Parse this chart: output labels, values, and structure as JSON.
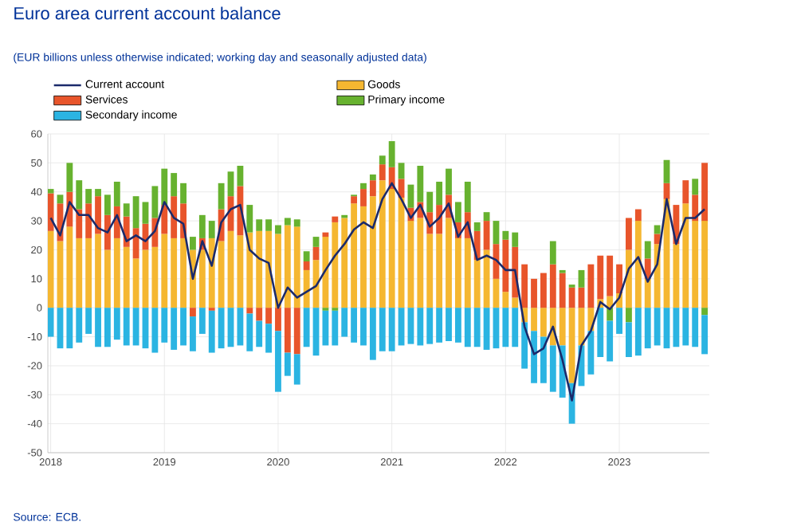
{
  "chart_data": {
    "type": "bar",
    "title": "Euro area current account balance",
    "subtitle": "(EUR billions unless otherwise indicated; working day and seasonally adjusted data)",
    "annotations": [
      "Source: ECB."
    ],
    "x": [
      "2018-01",
      "2018-02",
      "2018-03",
      "2018-04",
      "2018-05",
      "2018-06",
      "2018-07",
      "2018-08",
      "2018-09",
      "2018-10",
      "2018-11",
      "2018-12",
      "2019-01",
      "2019-02",
      "2019-03",
      "2019-04",
      "2019-05",
      "2019-06",
      "2019-07",
      "2019-08",
      "2019-09",
      "2019-10",
      "2019-11",
      "2019-12",
      "2020-01",
      "2020-02",
      "2020-03",
      "2020-04",
      "2020-05",
      "2020-06",
      "2020-07",
      "2020-08",
      "2020-09",
      "2020-10",
      "2020-11",
      "2020-12",
      "2021-01",
      "2021-02",
      "2021-03",
      "2021-04",
      "2021-05",
      "2021-06",
      "2021-07",
      "2021-08",
      "2021-09",
      "2021-10",
      "2021-11",
      "2021-12",
      "2022-01",
      "2022-02",
      "2022-03",
      "2022-04",
      "2022-05",
      "2022-06",
      "2022-07",
      "2022-08",
      "2022-09",
      "2022-10",
      "2022-11",
      "2022-12",
      "2023-01",
      "2023-02",
      "2023-03",
      "2023-04",
      "2023-05",
      "2023-06",
      "2023-07",
      "2023-08",
      "2023-09",
      "2023-10"
    ],
    "series": [
      {
        "name": "Current account",
        "type": "line",
        "color": "#1b2a6b",
        "values": [
          31,
          25,
          36.5,
          32,
          32,
          27.5,
          26,
          32,
          23,
          25,
          23,
          26.5,
          36.5,
          31,
          29,
          10,
          23,
          14.5,
          29.5,
          34,
          35.5,
          20,
          17,
          15.5,
          0,
          7,
          3.5,
          5.5,
          7.5,
          13,
          18,
          22,
          27,
          29.5,
          27.5,
          37.5,
          43,
          37.5,
          31,
          35.5,
          28,
          31,
          36,
          24.5,
          29.5,
          16.5,
          18,
          16.5,
          13,
          13,
          -6.5,
          -16,
          -14,
          -6.5,
          -18,
          -32,
          -13,
          -8,
          2,
          -0.5,
          3.5,
          13.5,
          17.5,
          9,
          15,
          37.5,
          22,
          31,
          31,
          34
        ]
      },
      {
        "name": "Goods",
        "type": "bar",
        "color": "#f5b731",
        "values": [
          26.5,
          23,
          28,
          24,
          24,
          25.5,
          20,
          24,
          21,
          17,
          20,
          21,
          25.5,
          24,
          24,
          20,
          20,
          24,
          23,
          26.5,
          25,
          26,
          26.5,
          26.5,
          25.5,
          28.5,
          28,
          13,
          16.5,
          24.5,
          29.5,
          31,
          36,
          35,
          38.5,
          44,
          41,
          38,
          30,
          31,
          25.5,
          25.5,
          31,
          24,
          24,
          16.5,
          20,
          10,
          5.5,
          3.5,
          -5,
          -8,
          -10,
          -13,
          -13,
          -26,
          -13,
          -8,
          3,
          4,
          5,
          20,
          30,
          10,
          22,
          37.5,
          22,
          36,
          30,
          30
        ]
      },
      {
        "name": "Services",
        "type": "bar",
        "color": "#e8552b",
        "values": [
          13,
          13,
          12,
          10,
          12,
          13,
          12,
          11,
          10.5,
          10.5,
          9,
          10,
          10,
          14.5,
          12,
          -3,
          4,
          -1,
          11,
          12,
          17,
          -2,
          -4.5,
          -5.5,
          -8,
          -15.5,
          -16,
          3,
          4.5,
          1.5,
          2,
          0,
          2.5,
          6,
          5.5,
          5.5,
          7.5,
          6.5,
          4.5,
          5.5,
          7.5,
          10,
          8,
          5.5,
          9,
          10,
          10,
          12,
          18,
          17.5,
          15,
          10,
          12,
          15,
          12,
          7,
          7,
          15,
          15,
          14,
          10,
          11,
          4,
          7,
          3.5,
          5.5,
          13.5,
          8,
          9,
          20
        ]
      },
      {
        "name": "Primary income",
        "type": "bar",
        "color": "#67b22f",
        "values": [
          1.5,
          3,
          10,
          10,
          5,
          2.5,
          7,
          8.5,
          4.5,
          11,
          7.5,
          11,
          12.5,
          8,
          7,
          4.5,
          8,
          6,
          9,
          8.5,
          7,
          9.5,
          4,
          4,
          3,
          2.5,
          2.5,
          3.5,
          3.5,
          -1,
          -1,
          1,
          0.5,
          2,
          2,
          3,
          9,
          5.5,
          8,
          12.5,
          7,
          8,
          9,
          7,
          10.5,
          3,
          3,
          8,
          3,
          5,
          0,
          0,
          0,
          8,
          1,
          1,
          6,
          0,
          0,
          -4.5,
          0,
          -5,
          0,
          6,
          3,
          8,
          0,
          0,
          5.5,
          -2.5
        ]
      },
      {
        "name": "Secondary income",
        "type": "bar",
        "color": "#2bb4e2",
        "values": [
          -10,
          -14,
          -14,
          -12,
          -9,
          -13.5,
          -13.5,
          -11,
          -13,
          -13,
          -14,
          -15.5,
          -12,
          -14.5,
          -13,
          -12,
          -9,
          -14.5,
          -14,
          -13.5,
          -13,
          -13,
          -9,
          -10,
          -21,
          -8,
          -10.5,
          -13.5,
          -16.5,
          -12,
          -12,
          -10,
          -12,
          -13,
          -18,
          -15,
          -15,
          -13,
          -12.5,
          -13,
          -12.5,
          -12,
          -11.5,
          -12,
          -13.5,
          -13.5,
          -14.5,
          -14,
          -13.5,
          -13.5,
          -16,
          -18,
          -16,
          -16,
          -18,
          -14,
          -14,
          -15,
          -17,
          -14,
          -9,
          -12,
          -16.5,
          -14,
          -13,
          -14,
          -13.5,
          -13,
          -13.5,
          -13.5
        ]
      }
    ],
    "stacked": true,
    "xlim": [
      "2017-12-22",
      "2023-10-16"
    ],
    "xticks": [
      "2018",
      "2019",
      "2020",
      "2021",
      "2022",
      "2023"
    ],
    "ylim": [
      -50,
      60
    ],
    "yticks": [
      -50,
      -40,
      -30,
      -20,
      -10,
      0,
      10,
      20,
      30,
      40,
      50,
      60
    ],
    "grid": true,
    "legend": "top left"
  }
}
